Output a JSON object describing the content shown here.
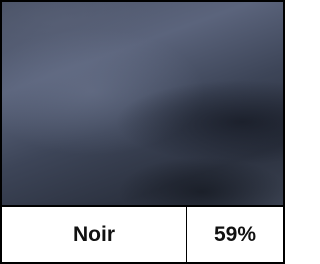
{
  "swatch": {
    "name": "Noir",
    "percentage": "59%"
  }
}
